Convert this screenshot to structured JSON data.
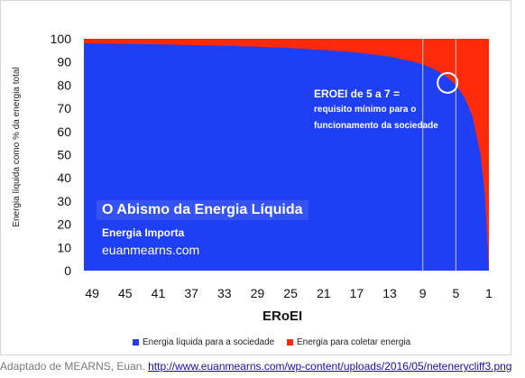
{
  "chart_data": {
    "type": "area",
    "title": "",
    "xlabel": "ERoEI",
    "ylabel": "Energia líquida como % da energia total",
    "xlim": [
      50,
      1
    ],
    "ylim": [
      0,
      100
    ],
    "x_ticks": [
      49,
      45,
      41,
      37,
      33,
      29,
      25,
      21,
      17,
      13,
      9,
      5,
      1
    ],
    "y_ticks": [
      0,
      10,
      20,
      30,
      40,
      50,
      60,
      70,
      80,
      90,
      100
    ],
    "x": [
      50,
      49,
      45,
      41,
      37,
      33,
      29,
      25,
      21,
      17,
      13,
      10,
      9,
      8,
      7,
      6,
      5,
      4,
      3,
      2,
      1.5,
      1
    ],
    "series": [
      {
        "name": "Energia líquida para a sociedade",
        "color": "#1f3ff5",
        "values": [
          98.0,
          98.0,
          97.8,
          97.6,
          97.3,
          97.0,
          96.6,
          96.0,
          95.2,
          94.1,
          92.3,
          90.0,
          88.9,
          87.5,
          85.7,
          83.3,
          80.0,
          75.0,
          66.7,
          50.0,
          33.3,
          0.0
        ]
      },
      {
        "name": "Energia para coletar energia",
        "color": "#ff2a0a",
        "values": [
          2.0,
          2.0,
          2.2,
          2.4,
          2.7,
          3.0,
          3.4,
          4.0,
          4.8,
          5.9,
          7.7,
          10.0,
          11.1,
          12.5,
          14.3,
          16.7,
          20.0,
          25.0,
          33.3,
          50.0,
          66.7,
          100.0
        ]
      }
    ],
    "vlines": [
      9,
      5
    ],
    "highlight": {
      "x": 6,
      "y": 81
    },
    "grid": false,
    "legend": "bottom"
  },
  "annotation": {
    "line1": "EROEI de 5 a 7 =",
    "line2": "requisito mínimo para o",
    "line3": "funcionamento da sociedade"
  },
  "watermark": {
    "title": "O Abismo da Energia Líquida",
    "subtitle": "Energia Importa",
    "site": "euanmearns.com"
  },
  "caption": {
    "prefix": "Adaptado de MEARNS, Euan.",
    "url": "http://www.euanmearns.com/wp-content/uploads/2016/05/netenerycliff3.png"
  }
}
